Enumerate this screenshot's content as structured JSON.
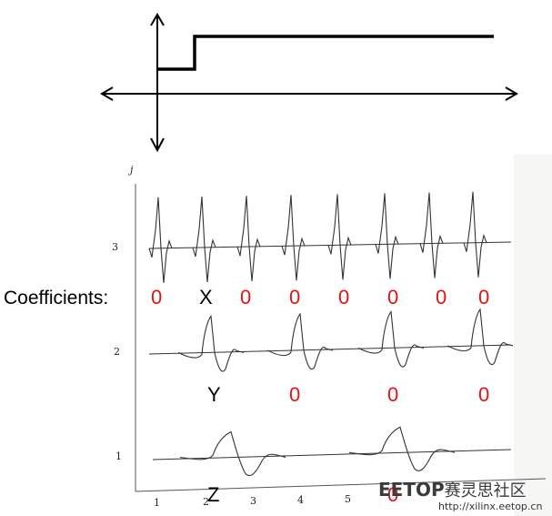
{
  "figure": {
    "coefficients_label": "Coefficients:",
    "j_axis_label": "j",
    "j_ticks": [
      "3",
      "2",
      "1"
    ],
    "x_ticks": [
      "1",
      "2",
      "3",
      "4",
      "5"
    ],
    "rows": [
      {
        "j": 3,
        "coefficients": [
          "0",
          "X",
          "0",
          "0",
          "0",
          "0",
          "0",
          "0"
        ]
      },
      {
        "j": 2,
        "coefficients": [
          "Y",
          "0",
          "0",
          "0"
        ]
      },
      {
        "j": 1,
        "coefficients": [
          "Z",
          "0"
        ]
      }
    ],
    "colors": {
      "zero": "#e8110f",
      "symbol": "#000000",
      "curve": "#333333"
    }
  },
  "watermark": {
    "brand": "EETOP",
    "brand_cn": "赛灵思社区",
    "url": "http://xilinx.eetop.cn"
  }
}
